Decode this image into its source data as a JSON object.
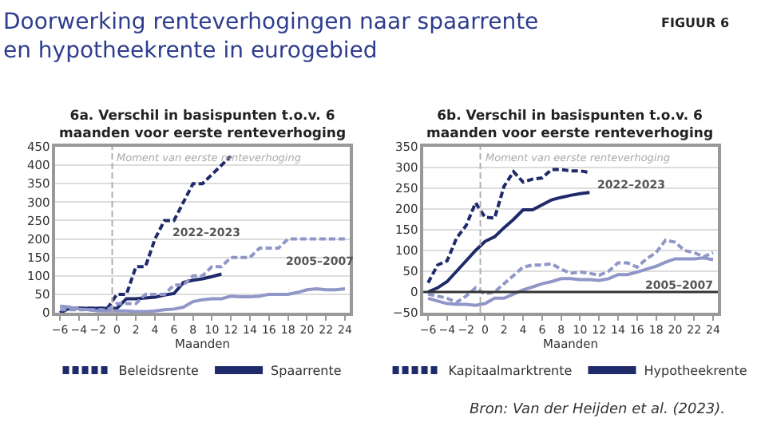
{
  "chart_data": [
    {
      "type": "line",
      "title": "Doorwerking renteverhogingen naar spaarrente en hypotheekrente in eurogebied",
      "subtitle": "6a. Verschil in basispunten t.o.v. 6 maanden voor eerste renteverhoging",
      "xlabel": "Maanden",
      "xlim": [
        -6.5,
        24.5
      ],
      "xticks": [
        -6,
        -4,
        -2,
        0,
        2,
        4,
        6,
        8,
        10,
        12,
        14,
        16,
        18,
        20,
        22,
        24
      ],
      "ylim": [
        0,
        450
      ],
      "yticks": [
        0,
        50,
        100,
        150,
        200,
        250,
        300,
        350,
        400,
        450
      ],
      "grid": "y",
      "legend": "bottom",
      "marker": "none",
      "ref_lines": [
        {
          "axis": "x",
          "value": -0.5,
          "label": "Moment van eerste renteverhoging",
          "color": "#b0b0b0",
          "line_style": "dashed"
        }
      ],
      "annotations": [
        {
          "text": "2022–2023",
          "x": 5,
          "y": 250
        },
        {
          "text": "2005–2007",
          "x": 17,
          "y": 175
        }
      ],
      "series": [
        {
          "name": "Beleidsrente",
          "color": "#1f2a6b",
          "line_style": "dashed",
          "x": [
            -6,
            -5,
            -1,
            0,
            1,
            2,
            3,
            4,
            5,
            6,
            7,
            8,
            9,
            10,
            11,
            12
          ],
          "values": [
            0,
            12,
            12,
            50,
            50,
            125,
            125,
            200,
            250,
            250,
            300,
            350,
            350,
            375,
            400,
            425
          ]
        },
        {
          "name": "Spaarrente",
          "color": "#1f2a6b",
          "line_style": "solid",
          "x": [
            -6,
            -5,
            -4,
            -3,
            -2,
            -1,
            0,
            1,
            2,
            3,
            4,
            5,
            6,
            7,
            8,
            9,
            10,
            11
          ],
          "values": [
            0,
            12,
            12,
            12,
            12,
            12,
            12,
            38,
            38,
            40,
            42,
            48,
            52,
            82,
            88,
            92,
            98,
            105
          ]
        },
        {
          "color": "#9097c8",
          "line_style": "dashed",
          "x": [
            -6,
            -1,
            0,
            1,
            2,
            3,
            4,
            5,
            6,
            7,
            8,
            9,
            10,
            11,
            12,
            13,
            14,
            15,
            16,
            17,
            18,
            19,
            20,
            21,
            22,
            23,
            24
          ],
          "values": [
            8,
            8,
            25,
            25,
            25,
            50,
            50,
            50,
            75,
            75,
            100,
            100,
            125,
            125,
            150,
            150,
            150,
            175,
            175,
            175,
            200,
            200,
            200,
            200,
            200,
            200,
            200
          ]
        },
        {
          "color": "#9097c8",
          "line_style": "solid",
          "x": [
            -6,
            -5,
            -4,
            -3,
            -2,
            -1,
            0,
            1,
            2,
            3,
            4,
            5,
            6,
            7,
            8,
            9,
            10,
            11,
            12,
            13,
            14,
            15,
            16,
            17,
            18,
            19,
            20,
            21,
            22,
            23,
            24
          ],
          "values": [
            18,
            15,
            10,
            8,
            5,
            5,
            5,
            5,
            3,
            3,
            5,
            8,
            10,
            15,
            30,
            35,
            38,
            38,
            45,
            43,
            43,
            45,
            50,
            50,
            50,
            55,
            62,
            65,
            62,
            62,
            65
          ]
        }
      ]
    },
    {
      "type": "line",
      "subtitle": "6b. Verschil in basispunten t.o.v. 6 maanden voor eerste renteverhoging",
      "xlabel": "Maanden",
      "xlim": [
        -6.5,
        24.5
      ],
      "xticks": [
        -6,
        -4,
        -2,
        0,
        2,
        4,
        6,
        8,
        10,
        12,
        14,
        16,
        18,
        20,
        22,
        24
      ],
      "ylim": [
        -50,
        350
      ],
      "yticks": [
        -50,
        0,
        50,
        100,
        150,
        200,
        250,
        300,
        350
      ],
      "grid": "y",
      "legend": "bottom",
      "marker": "none",
      "ref_lines": [
        {
          "axis": "x",
          "value": -0.5,
          "label": "Moment van eerste renteverhoging",
          "color": "#b0b0b0",
          "line_style": "dashed"
        },
        {
          "axis": "y",
          "value": 0,
          "color": "#333333",
          "line_style": "solid"
        }
      ],
      "annotations": [
        "FIGUUR 6",
        "Bron: Van der Heijden et al. (2023).",
        {
          "text": "2022–2023",
          "x": 11,
          "y": 288
        },
        {
          "text": "2005–2007",
          "x": 16,
          "y": 48
        }
      ],
      "series": [
        {
          "name": "Kapitaalmarktrente",
          "color": "#1f2a6b",
          "line_style": "dashed",
          "x": [
            -6,
            -5,
            -4,
            -3,
            -2,
            -1,
            0,
            1,
            2,
            3,
            4,
            5,
            6,
            7,
            8,
            9,
            10,
            11
          ],
          "values": [
            22,
            65,
            75,
            130,
            160,
            215,
            180,
            178,
            255,
            290,
            265,
            272,
            275,
            295,
            295,
            292,
            292,
            288
          ]
        },
        {
          "name": "Hypotheekrente",
          "color": "#1f2a6b",
          "line_style": "solid",
          "x": [
            -6,
            -5,
            -4,
            -3,
            -2,
            -1,
            0,
            1,
            2,
            3,
            4,
            5,
            6,
            7,
            8,
            9,
            10,
            11
          ],
          "values": [
            0,
            10,
            25,
            50,
            75,
            100,
            122,
            133,
            155,
            175,
            198,
            198,
            210,
            222,
            228,
            233,
            237,
            240
          ]
        },
        {
          "color": "#9097c8",
          "line_style": "dashed",
          "x": [
            -6,
            -5,
            -4,
            -3,
            -2,
            -1,
            0,
            1,
            2,
            3,
            4,
            5,
            6,
            7,
            8,
            9,
            10,
            11,
            12,
            13,
            14,
            15,
            16,
            17,
            18,
            19,
            20,
            21,
            22,
            23,
            24
          ],
          "values": [
            -5,
            -10,
            -15,
            -25,
            -10,
            10,
            -5,
            0,
            20,
            40,
            60,
            65,
            65,
            68,
            55,
            45,
            48,
            45,
            40,
            50,
            70,
            70,
            60,
            80,
            95,
            125,
            120,
            100,
            95,
            85,
            95
          ]
        },
        {
          "color": "#9097c8",
          "line_style": "solid",
          "x": [
            -6,
            -5,
            -4,
            -3,
            -2,
            -1,
            0,
            1,
            2,
            3,
            4,
            5,
            6,
            7,
            8,
            9,
            10,
            11,
            12,
            13,
            14,
            15,
            16,
            17,
            18,
            19,
            20,
            21,
            22,
            23,
            24
          ],
          "values": [
            -15,
            -22,
            -28,
            -30,
            -30,
            -32,
            -28,
            -15,
            -15,
            -5,
            5,
            12,
            20,
            25,
            32,
            32,
            30,
            30,
            28,
            32,
            42,
            42,
            48,
            55,
            62,
            72,
            80,
            80,
            80,
            82,
            78
          ]
        }
      ]
    }
  ]
}
